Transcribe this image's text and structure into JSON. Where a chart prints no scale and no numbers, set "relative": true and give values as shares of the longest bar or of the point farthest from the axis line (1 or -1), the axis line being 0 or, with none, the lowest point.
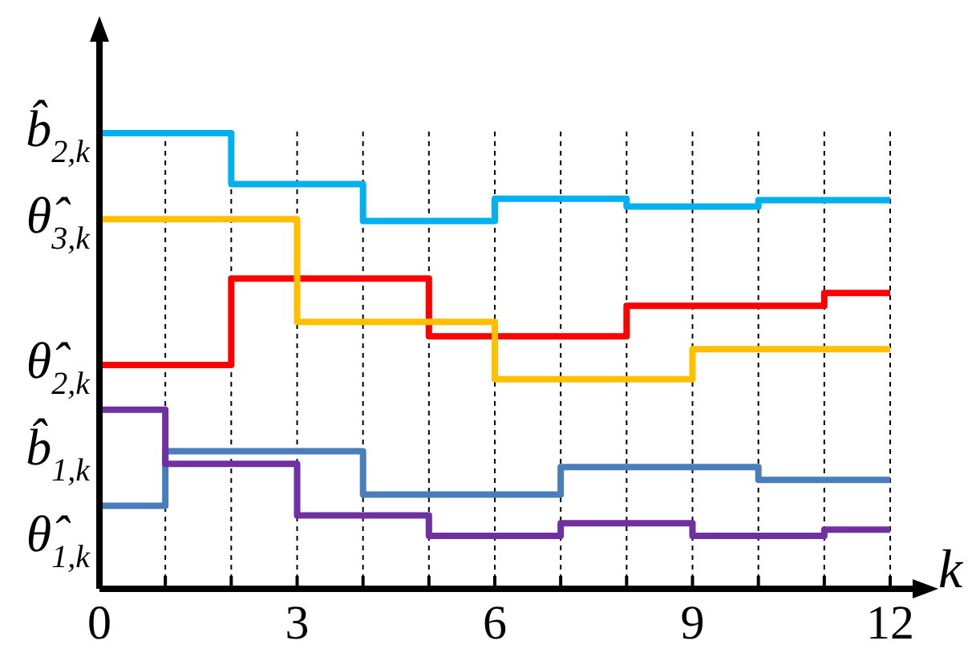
{
  "chart_data": {
    "type": "step",
    "relative": true,
    "xlabel": "k",
    "x": [
      0,
      1,
      2,
      3,
      4,
      5,
      6,
      7,
      8,
      9,
      10,
      11,
      12
    ],
    "xlim": [
      0,
      12
    ],
    "xticks": [
      0,
      {
        "value": 1,
        "label": null
      },
      {
        "value": 2,
        "label": null
      },
      3,
      {
        "value": 4,
        "label": null
      },
      {
        "value": 5,
        "label": null
      },
      6,
      {
        "value": 7,
        "label": null
      },
      {
        "value": 8,
        "label": null
      },
      9,
      {
        "value": 10,
        "label": null
      },
      {
        "value": 11,
        "label": null
      },
      12
    ],
    "grid": "x",
    "line_style": "solid",
    "marker": "none",
    "series": [
      {
        "name": "b̂$_{2,k}$",
        "color": "#00b0f0",
        "values": [
          1,
          1,
          0.888,
          0.888,
          0.807,
          0.807,
          0.856,
          0.856,
          0.839,
          0.839,
          0.853,
          0.853,
          0.853
        ]
      },
      {
        "name": "θ̂$_{3,k}$",
        "color": "#ffc000",
        "values": [
          0.811,
          0.811,
          0.811,
          0.586,
          0.586,
          0.586,
          0.46,
          0.46,
          0.46,
          0.526,
          0.526,
          0.526,
          0.526
        ]
      },
      {
        "name": "θ̂$_{2,k}$",
        "color": "#ff0000",
        "values": [
          0.491,
          0.491,
          0.681,
          0.681,
          0.681,
          0.554,
          0.554,
          0.554,
          0.621,
          0.621,
          0.621,
          0.649,
          0.649
        ]
      },
      {
        "name": "b̂$_{1,k}$",
        "color": "#7030a0",
        "values": [
          0.393,
          0.274,
          0.274,
          0.161,
          0.161,
          0.116,
          0.116,
          0.144,
          0.144,
          0.116,
          0.116,
          0.13,
          0.13
        ]
      },
      {
        "name": "θ̂$_{1,k}$",
        "color": "#4a7ebb",
        "values": [
          0.182,
          0.302,
          0.302,
          0.302,
          0.207,
          0.207,
          0.207,
          0.267,
          0.267,
          0.267,
          0.239,
          0.239,
          0.239
        ]
      }
    ]
  }
}
